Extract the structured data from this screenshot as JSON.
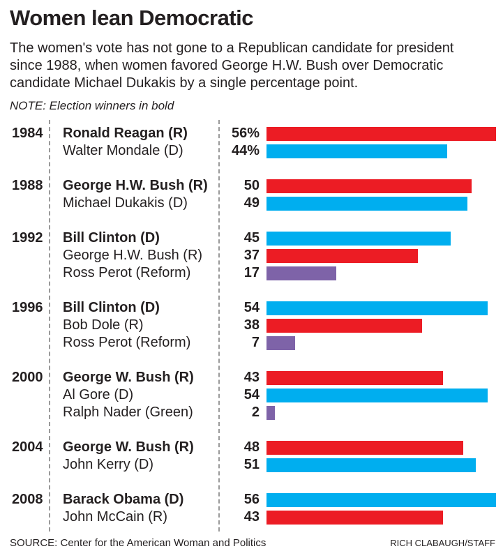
{
  "header": {
    "title": "Women lean Democratic",
    "subtitle": "The women's vote has not gone to a Republican candidate for president since 1988, when women favored George H.W. Bush over Democratic candidate Michael Dukakis by a single percentage point.",
    "note": "NOTE: Election winners in bold"
  },
  "footer": {
    "source": "SOURCE: Center for the American Woman and Politics",
    "credit": "RICH CLABAUGH/STAFF"
  },
  "colors": {
    "republican": "#EC1C24",
    "democrat": "#00AEEF",
    "third_party": "#7E63A8",
    "divider": "#9A9A9A",
    "text": "#231F20"
  },
  "chart_data": {
    "type": "bar",
    "orientation": "horizontal",
    "title": "Women lean Democratic",
    "unit": "percent of women's vote",
    "axis_max": 56,
    "grid": false,
    "groups": [
      {
        "year": "1984",
        "candidates": [
          {
            "name": "Ronald Reagan (R)",
            "party": "republican",
            "value": 56,
            "label": "56%",
            "winner": true
          },
          {
            "name": "Walter Mondale (D)",
            "party": "democrat",
            "value": 44,
            "label": "44%",
            "winner": false
          }
        ]
      },
      {
        "year": "1988",
        "candidates": [
          {
            "name": "George H.W. Bush (R)",
            "party": "republican",
            "value": 50,
            "label": "50",
            "winner": true
          },
          {
            "name": "Michael Dukakis (D)",
            "party": "democrat",
            "value": 49,
            "label": "49",
            "winner": false
          }
        ]
      },
      {
        "year": "1992",
        "candidates": [
          {
            "name": "Bill Clinton (D)",
            "party": "democrat",
            "value": 45,
            "label": "45",
            "winner": true
          },
          {
            "name": "George H.W. Bush (R)",
            "party": "republican",
            "value": 37,
            "label": "37",
            "winner": false
          },
          {
            "name": "Ross Perot (Reform)",
            "party": "third_party",
            "value": 17,
            "label": "17",
            "winner": false
          }
        ]
      },
      {
        "year": "1996",
        "candidates": [
          {
            "name": "Bill Clinton (D)",
            "party": "democrat",
            "value": 54,
            "label": "54",
            "winner": true
          },
          {
            "name": "Bob Dole (R)",
            "party": "republican",
            "value": 38,
            "label": "38",
            "winner": false
          },
          {
            "name": "Ross Perot (Reform)",
            "party": "third_party",
            "value": 7,
            "label": "7",
            "winner": false
          }
        ]
      },
      {
        "year": "2000",
        "candidates": [
          {
            "name": "George W. Bush (R)",
            "party": "republican",
            "value": 43,
            "label": "43",
            "winner": true
          },
          {
            "name": "Al Gore (D)",
            "party": "democrat",
            "value": 54,
            "label": "54",
            "winner": false
          },
          {
            "name": "Ralph Nader (Green)",
            "party": "third_party",
            "value": 2,
            "label": "2",
            "winner": false
          }
        ]
      },
      {
        "year": "2004",
        "candidates": [
          {
            "name": "George W. Bush (R)",
            "party": "republican",
            "value": 48,
            "label": "48",
            "winner": true
          },
          {
            "name": "John Kerry (D)",
            "party": "democrat",
            "value": 51,
            "label": "51",
            "winner": false
          }
        ]
      },
      {
        "year": "2008",
        "candidates": [
          {
            "name": "Barack Obama (D)",
            "party": "democrat",
            "value": 56,
            "label": "56",
            "winner": true
          },
          {
            "name": "John McCain (R)",
            "party": "republican",
            "value": 43,
            "label": "43",
            "winner": false
          }
        ]
      }
    ]
  }
}
